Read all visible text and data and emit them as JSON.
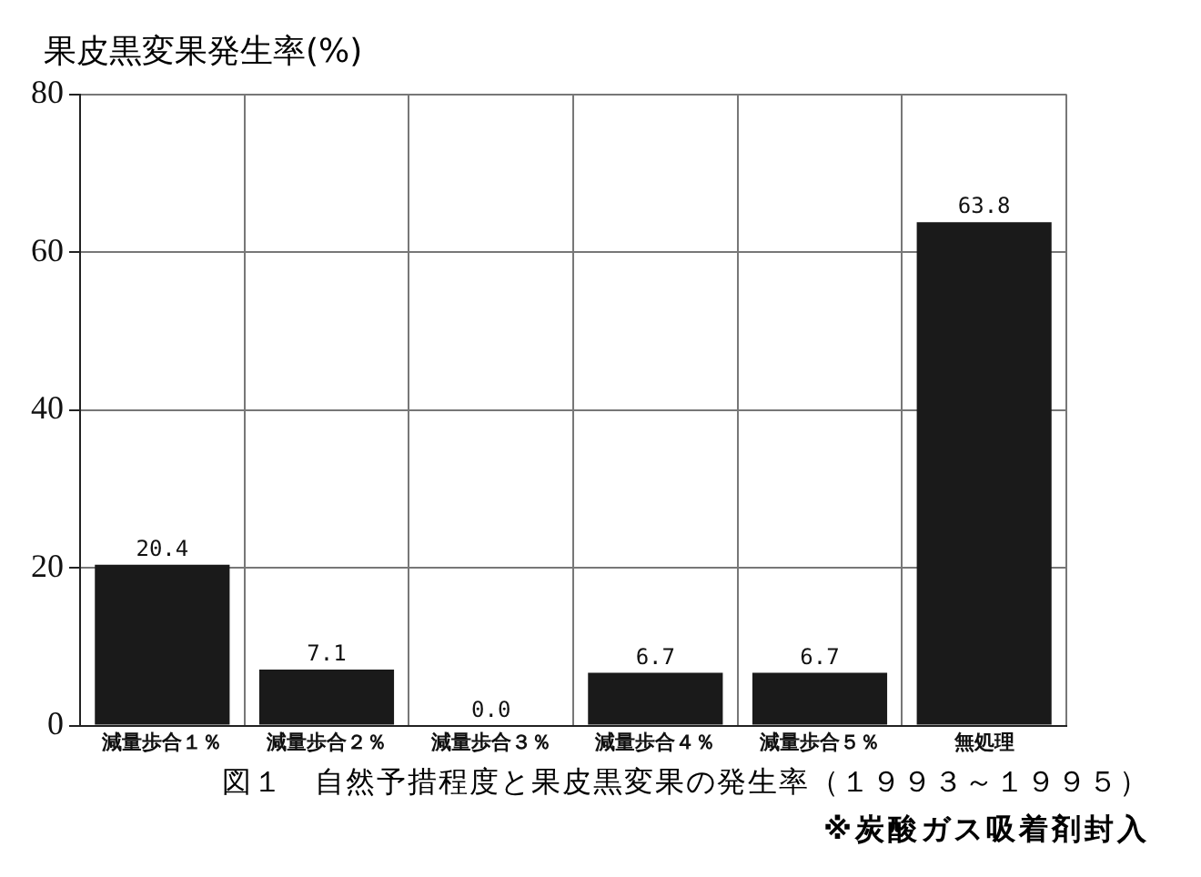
{
  "chart_data": {
    "type": "bar",
    "ylabel": "果皮黒変果発生率(%)",
    "categories": [
      "減量歩合１％",
      "減量歩合２％",
      "減量歩合３％",
      "減量歩合４％",
      "減量歩合５％",
      "無処理"
    ],
    "values": [
      20.4,
      7.1,
      0,
      6.7,
      6.7,
      63.8
    ],
    "value_labels": [
      "20.4",
      "7.1",
      "0.0",
      "6.7",
      "6.7",
      "63.8"
    ],
    "color": "#1a1a1a",
    "ylim": [
      0,
      80
    ],
    "yticks": [
      0,
      20,
      40,
      60,
      80
    ],
    "grid": true,
    "annotations": [
      "図１　自然予措程度と果皮黒変果の発生率（１９９３～１９９５）",
      "※炭酸ガス吸着剤封入"
    ]
  }
}
